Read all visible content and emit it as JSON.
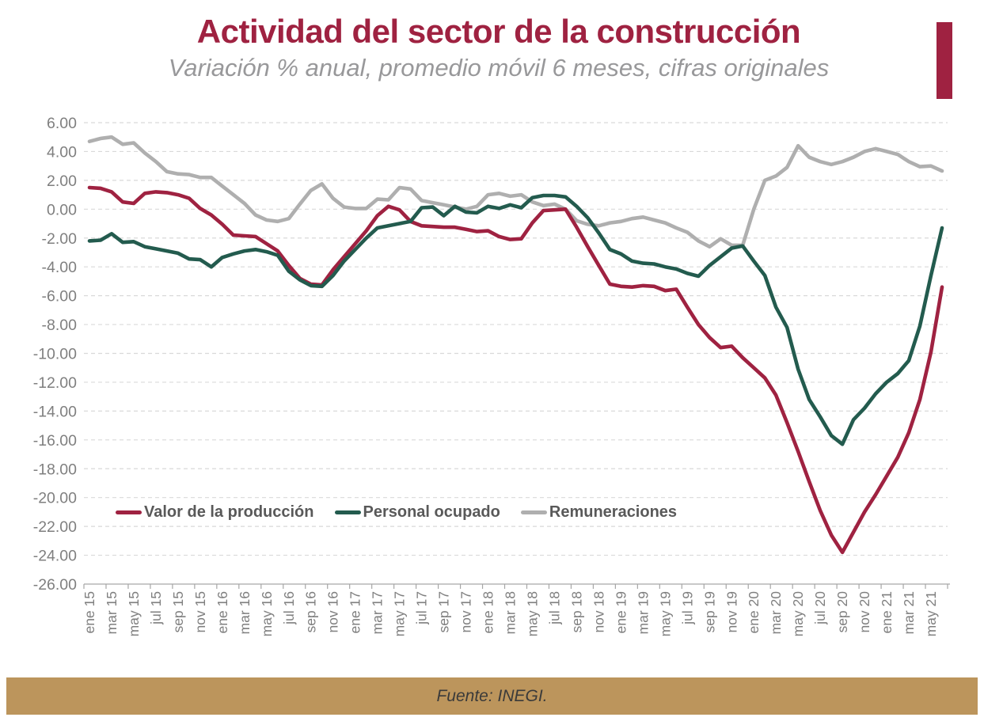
{
  "header": {
    "title": "Actividad del sector de la construcción",
    "subtitle": "Variación % anual, promedio móvil 6 meses, cifras originales"
  },
  "footer": {
    "source": "Fuente: INEGI."
  },
  "colors": {
    "accent": "#9F2241",
    "series_valor": "#9F2241",
    "series_personal": "#235B4E",
    "series_remuneraciones": "#AFAFAF",
    "grid": "#D9D9D9",
    "axis": "#A6A6A6",
    "tick_text": "#7F7F7F",
    "legend_text": "#595959",
    "footer_band": "#BC955C"
  },
  "chart_data": {
    "type": "line",
    "title": "Actividad del sector de la construcción",
    "subtitle": "Variación % anual, promedio móvil 6 meses, cifras originales",
    "ylim": [
      -26,
      6
    ],
    "y_tick_step": 2,
    "y_tick_labels": [
      "6.00",
      "4.00",
      "2.00",
      "0.00",
      "-2.00",
      "-4.00",
      "-6.00",
      "-8.00",
      "-10.00",
      "-12.00",
      "-14.00",
      "-16.00",
      "-18.00",
      "-20.00",
      "-22.00",
      "-24.00",
      "-26.00"
    ],
    "x_tick_labels": [
      "ene 15",
      "mar 15",
      "may 15",
      "jul 15",
      "sep 15",
      "nov 15",
      "ene 16",
      "mar 16",
      "may 16",
      "jul 16",
      "sep 16",
      "nov 16",
      "ene 17",
      "mar 17",
      "may 17",
      "jul 17",
      "sep 17",
      "nov 17",
      "ene 18",
      "mar 18",
      "may 18",
      "jul 18",
      "sep 18",
      "nov 18",
      "ene 19",
      "mar 19",
      "may 19",
      "jul 19",
      "sep 19",
      "nov 19",
      "ene 20",
      "mar 20",
      "may 20",
      "jul 20",
      "sep 20",
      "nov 20",
      "ene 21",
      "mar 21",
      "may 21"
    ],
    "months": [
      "ene 15",
      "feb 15",
      "mar 15",
      "abr 15",
      "may 15",
      "jun 15",
      "jul 15",
      "ago 15",
      "sep 15",
      "oct 15",
      "nov 15",
      "dic 15",
      "ene 16",
      "feb 16",
      "mar 16",
      "abr 16",
      "may 16",
      "jun 16",
      "jul 16",
      "ago 16",
      "sep 16",
      "oct 16",
      "nov 16",
      "dic 16",
      "ene 17",
      "feb 17",
      "mar 17",
      "abr 17",
      "may 17",
      "jun 17",
      "jul 17",
      "ago 17",
      "sep 17",
      "oct 17",
      "nov 17",
      "dic 17",
      "ene 18",
      "feb 18",
      "mar 18",
      "abr 18",
      "may 18",
      "jun 18",
      "jul 18",
      "ago 18",
      "sep 18",
      "oct 18",
      "nov 18",
      "dic 18",
      "ene 19",
      "feb 19",
      "mar 19",
      "abr 19",
      "may 19",
      "jun 19",
      "jul 19",
      "ago 19",
      "sep 19",
      "oct 19",
      "nov 19",
      "dic 19",
      "ene 20",
      "feb 20",
      "mar 20",
      "abr 20",
      "may 20",
      "jun 20",
      "jul 20",
      "ago 20",
      "sep 20",
      "oct 20",
      "nov 20",
      "dic 20",
      "ene 21",
      "feb 21",
      "mar 21",
      "abr 21",
      "may 21",
      "jun 21"
    ],
    "grid": "dashed horizontal",
    "legend_position": "inside bottom-left",
    "series": [
      {
        "name": "Valor de la producción",
        "color": "#9F2241",
        "values": [
          1.5,
          1.45,
          1.2,
          0.5,
          0.4,
          1.1,
          1.2,
          1.15,
          1.0,
          0.75,
          0.05,
          -0.4,
          -1.05,
          -1.8,
          -1.85,
          -1.9,
          -2.4,
          -2.9,
          -3.9,
          -4.8,
          -5.2,
          -5.25,
          -4.2,
          -3.3,
          -2.4,
          -1.5,
          -0.45,
          0.2,
          -0.05,
          -0.85,
          -1.15,
          -1.2,
          -1.25,
          -1.25,
          -1.4,
          -1.55,
          -1.5,
          -1.9,
          -2.1,
          -2.05,
          -0.95,
          -0.1,
          -0.05,
          0.0,
          -1.25,
          -2.6,
          -3.9,
          -5.2,
          -5.35,
          -5.4,
          -5.3,
          -5.35,
          -5.65,
          -5.55,
          -6.8,
          -8.0,
          -8.9,
          -9.6,
          -9.5,
          -10.3,
          -11.0,
          -11.7,
          -12.9,
          -14.8,
          -16.8,
          -18.9,
          -20.9,
          -22.6,
          -23.8,
          -22.4,
          -21.0,
          -19.8,
          -18.5,
          -17.2,
          -15.5,
          -13.2,
          -9.9,
          -5.4
        ]
      },
      {
        "name": "Personal ocupado",
        "color": "#235B4E",
        "values": [
          -2.2,
          -2.15,
          -1.7,
          -2.3,
          -2.25,
          -2.6,
          -2.75,
          -2.9,
          -3.05,
          -3.45,
          -3.5,
          -4.0,
          -3.35,
          -3.1,
          -2.9,
          -2.8,
          -2.95,
          -3.2,
          -4.3,
          -4.9,
          -5.3,
          -5.35,
          -4.6,
          -3.6,
          -2.8,
          -2.0,
          -1.3,
          -1.15,
          -1.0,
          -0.85,
          0.1,
          0.15,
          -0.45,
          0.2,
          -0.2,
          -0.25,
          0.2,
          0.05,
          0.3,
          0.1,
          0.8,
          0.95,
          0.95,
          0.85,
          0.2,
          -0.6,
          -1.65,
          -2.8,
          -3.1,
          -3.6,
          -3.75,
          -3.8,
          -4.0,
          -4.15,
          -4.45,
          -4.65,
          -3.9,
          -3.3,
          -2.7,
          -2.55,
          -3.6,
          -4.6,
          -6.8,
          -8.2,
          -11.1,
          -13.2,
          -14.4,
          -15.7,
          -16.3,
          -14.6,
          -13.8,
          -12.8,
          -12.0,
          -11.4,
          -10.5,
          -8.1,
          -4.6,
          -1.3
        ]
      },
      {
        "name": "Remuneraciones",
        "color": "#AFAFAF",
        "values": [
          4.7,
          4.9,
          5.0,
          4.5,
          4.6,
          3.9,
          3.3,
          2.6,
          2.45,
          2.4,
          2.2,
          2.2,
          1.6,
          1.0,
          0.4,
          -0.4,
          -0.75,
          -0.85,
          -0.65,
          0.35,
          1.3,
          1.75,
          0.75,
          0.15,
          0.05,
          0.05,
          0.7,
          0.65,
          1.5,
          1.4,
          0.6,
          0.45,
          0.3,
          0.15,
          0.0,
          0.2,
          1.0,
          1.1,
          0.9,
          1.0,
          0.5,
          0.25,
          0.35,
          0.0,
          -0.8,
          -1.05,
          -1.15,
          -0.95,
          -0.85,
          -0.65,
          -0.55,
          -0.75,
          -0.95,
          -1.3,
          -1.6,
          -2.2,
          -2.6,
          -2.05,
          -2.5,
          -2.5,
          0.0,
          2.0,
          2.3,
          2.9,
          4.4,
          3.6,
          3.3,
          3.1,
          3.3,
          3.6,
          4.0,
          4.2,
          4.0,
          3.8,
          3.3,
          2.95,
          3.0,
          2.65
        ]
      }
    ]
  },
  "legend": {
    "items": [
      {
        "label": "Valor de la producción"
      },
      {
        "label": "Personal ocupado"
      },
      {
        "label": "Remuneraciones"
      }
    ]
  }
}
